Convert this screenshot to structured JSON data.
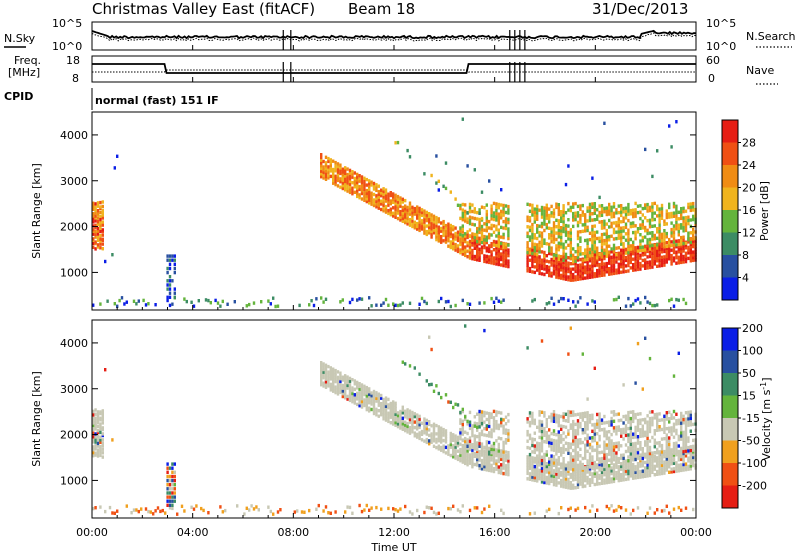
{
  "header": {
    "station": "Christmas Valley East (fitACF)",
    "beam": "Beam 18",
    "date": "31/Dec/2013"
  },
  "noise_panel": {
    "left_label": "N.Sky",
    "right_label": "N.Search",
    "left_ticks": [
      "10^5",
      "10^0"
    ],
    "right_ticks": [
      "10^5",
      "10^0"
    ]
  },
  "freq_panel": {
    "left_label_line1": "Freq.",
    "left_label_line2": "[MHz]",
    "right_label": "Nave",
    "left_ticks": [
      "18",
      "8"
    ],
    "right_ticks": [
      "60",
      "0"
    ]
  },
  "cpid": {
    "label": "CPID",
    "value": "normal (fast) 151 IF"
  },
  "colors": {
    "power": [
      "#0a1ee6",
      "#2850a0",
      "#3c8c64",
      "#64b43c",
      "#f0b41e",
      "#f08c14",
      "#f05014",
      "#e61e14"
    ],
    "velocity": [
      "#e61e14",
      "#f05014",
      "#f0a01e",
      "#c8c8b4",
      "#64b43c",
      "#3c8c64",
      "#2850a0",
      "#0a1ee6"
    ]
  },
  "chart_data": [
    {
      "type": "heatmap",
      "panel": "power",
      "ylabel": "Slant Range [km]",
      "yticks": [
        "1000",
        "2000",
        "3000",
        "4000"
      ],
      "colorbar_label": "Power [dB]",
      "colorbar_ticks": [
        "4",
        "8",
        "12",
        "16",
        "20",
        "24",
        "28"
      ],
      "xlim": [
        0,
        24
      ],
      "ylim": [
        180,
        4500
      ],
      "clim": [
        0,
        32
      ]
    },
    {
      "type": "heatmap",
      "panel": "velocity",
      "ylabel": "Slant Range [km]",
      "yticks": [
        "1000",
        "2000",
        "3000",
        "4000"
      ],
      "colorbar_label": "Velocity [m s^-1]",
      "colorbar_ticks": [
        "-200",
        "-100",
        "-50",
        "-15",
        "15",
        "50",
        "100",
        "200"
      ],
      "xlim": [
        0,
        24
      ],
      "ylim": [
        180,
        4500
      ]
    }
  ],
  "x_axis": {
    "ticks": [
      "00:00",
      "04:00",
      "08:00",
      "12:00",
      "16:00",
      "20:00",
      "00:00"
    ],
    "label": "Time UT"
  }
}
